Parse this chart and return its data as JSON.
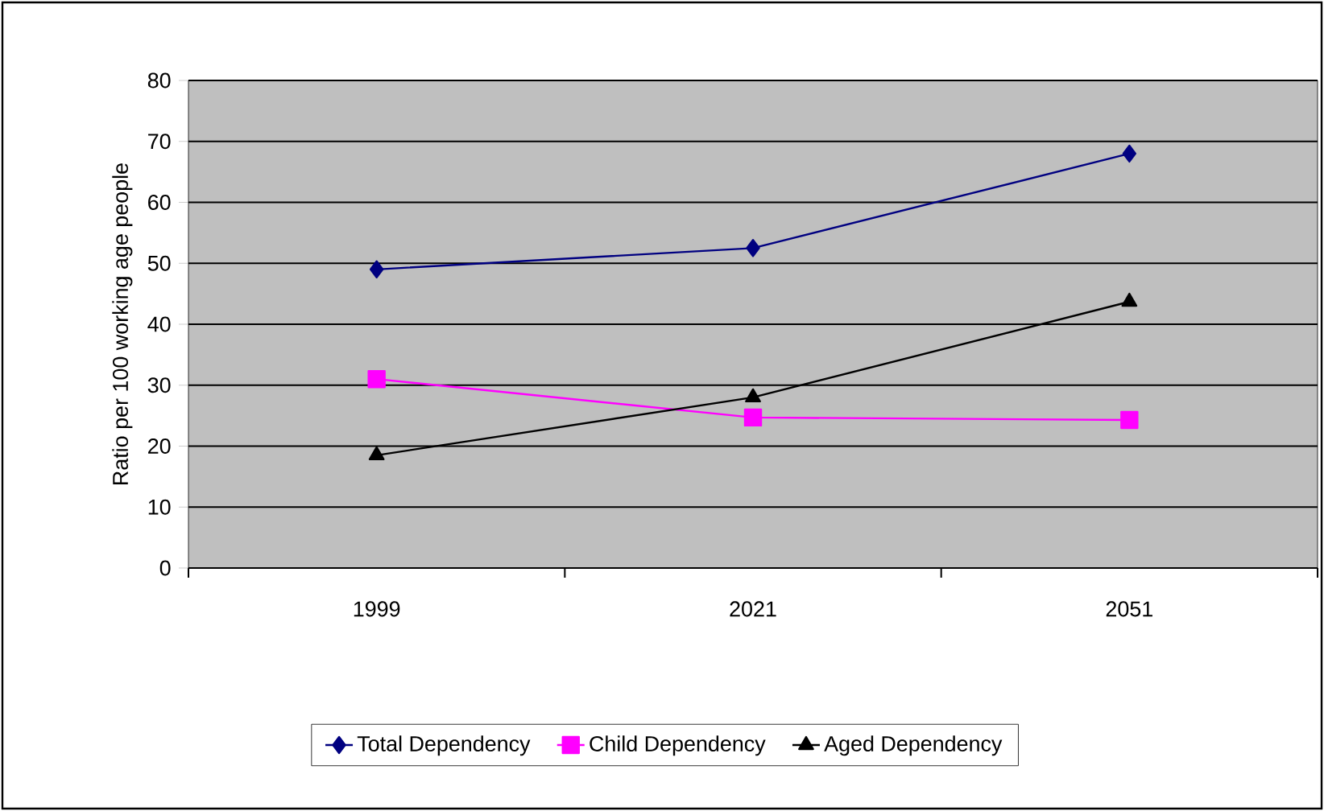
{
  "chart_data": {
    "type": "line",
    "ylabel": "Ratio per 100 working age people",
    "categories": [
      "1999",
      "2021",
      "2051"
    ],
    "series": [
      {
        "name": "Total Dependency",
        "color": "#000080",
        "marker": "diamond",
        "values": [
          49,
          52.5,
          68
        ]
      },
      {
        "name": "Child Dependency",
        "color": "#ff00ff",
        "marker": "square",
        "values": [
          31,
          24.7,
          24.3
        ]
      },
      {
        "name": "Aged Dependency",
        "color": "#000000",
        "marker": "triangle",
        "values": [
          18.5,
          28,
          43.7
        ]
      }
    ],
    "ylim": [
      0,
      80
    ],
    "yticks": [
      0,
      10,
      20,
      30,
      40,
      50,
      60,
      70,
      80
    ],
    "grid": "y",
    "legend": "bottom",
    "line_style": "solid"
  }
}
